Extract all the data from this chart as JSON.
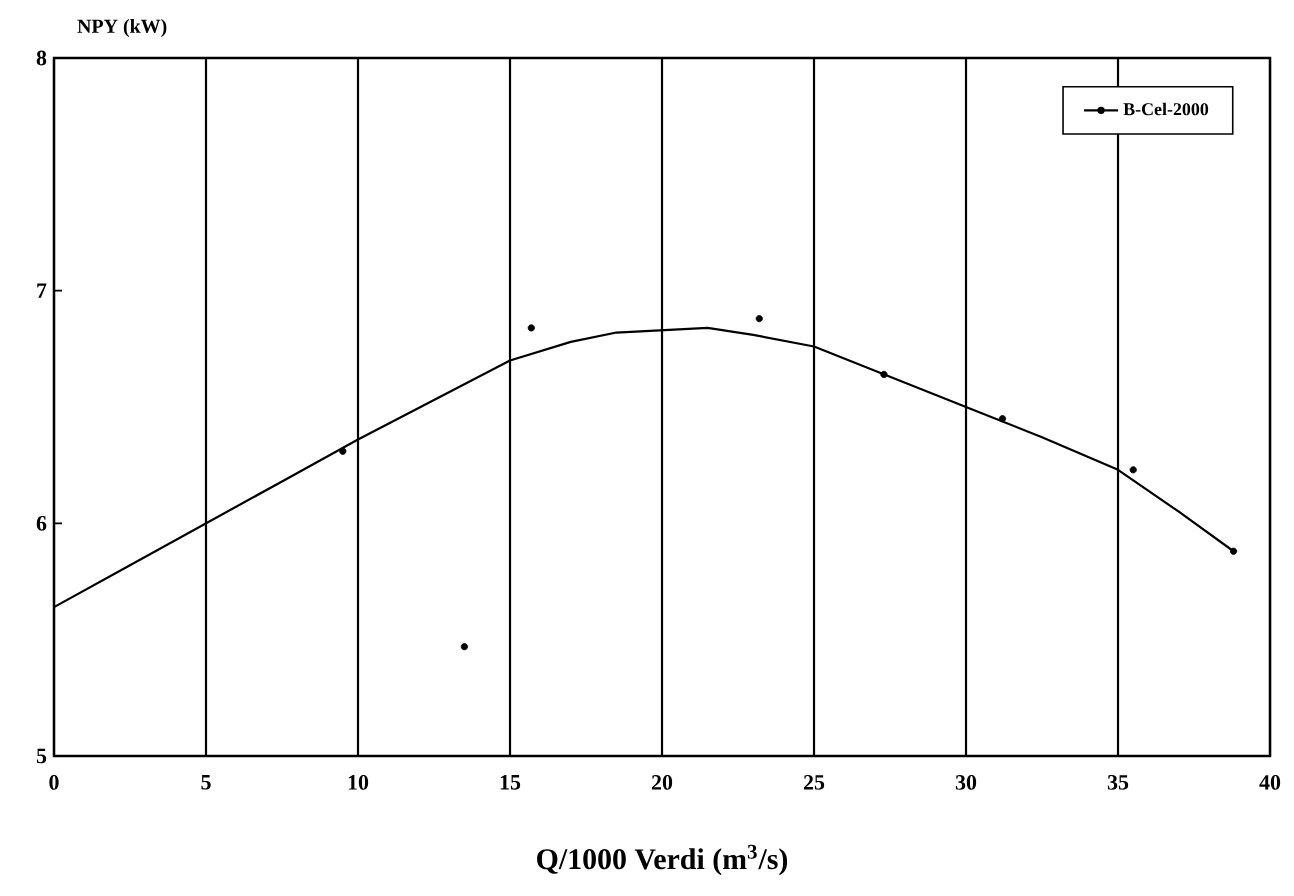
{
  "chart_data": {
    "type": "scatter",
    "ylabel": "NPY (kW)",
    "xlabel": "Q/1000 Verdi (m$^{3}$/s)",
    "xlim": [
      0,
      40
    ],
    "xticks": [
      0,
      5,
      10,
      15,
      20,
      25,
      30,
      35,
      40
    ],
    "ylim": [
      5,
      8
    ],
    "yticks": [
      5,
      6,
      7,
      8
    ],
    "grid": "x",
    "legend": "top right",
    "series": [
      {
        "marker": "circle",
        "color": "#000000",
        "x": [
          9.5,
          13.5,
          15.7,
          23.2,
          27.3,
          31.2,
          35.5,
          38.8
        ],
        "values": [
          6.31,
          5.47,
          6.84,
          6.88,
          6.64,
          6.45,
          6.23,
          5.88
        ]
      },
      {
        "type": "line",
        "name": "B-Cel-2000",
        "marker": "none",
        "line_style": "solid",
        "color": "#000000",
        "x": [
          0,
          2.5,
          5,
          7.5,
          10,
          12.5,
          15,
          17,
          18.5,
          20,
          21.5,
          23,
          25,
          27.5,
          30,
          32.5,
          35,
          37,
          38.8
        ],
        "values": [
          5.64,
          5.82,
          6.0,
          6.18,
          6.36,
          6.53,
          6.7,
          6.78,
          6.82,
          6.83,
          6.84,
          6.81,
          6.76,
          6.63,
          6.5,
          6.37,
          6.23,
          6.05,
          5.88
        ]
      }
    ]
  }
}
